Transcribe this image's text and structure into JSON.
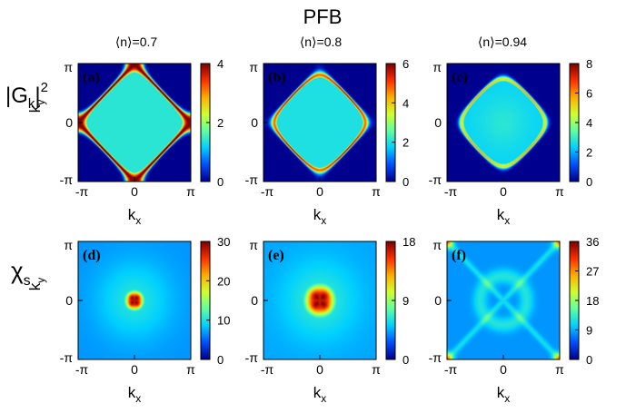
{
  "figure_title": "PFB",
  "column_titles": [
    "⟨n⟩=0.7",
    "⟨n⟩=0.8",
    "⟨n⟩=0.94"
  ],
  "row_labels": {
    "top": {
      "base": "|G",
      "sub": "k",
      "tail": "|",
      "sup": "2"
    },
    "bottom": {
      "base": "χ",
      "sub": "s"
    }
  },
  "axes": {
    "x_label_base": "k",
    "x_label_sub": "x",
    "y_label_base": "k",
    "y_label_sub": "y",
    "x_ticks": [
      "-π",
      "0",
      "π"
    ],
    "y_ticks": [
      "π",
      "0",
      "-π"
    ]
  },
  "colormap": [
    "#00008f",
    "#0050ff",
    "#00d0ff",
    "#60ffa0",
    "#d0ff30",
    "#ffb000",
    "#ff3000",
    "#800000"
  ],
  "chart_data": [
    {
      "type": "heatmap",
      "panel_label": "(a)",
      "quantity": "|G_k|^2",
      "x_range": [
        -3.1416,
        3.1416
      ],
      "y_range": [
        -3.1416,
        3.1416
      ],
      "colorbar_range": [
        0,
        4
      ],
      "colorbar_ticks": [
        "0",
        "2",
        "4"
      ],
      "colorbar_values": [
        0,
        2,
        4
      ],
      "pattern": "fermi-surface",
      "inner_fraction": 0.35,
      "ridge_level": 1.0,
      "background_level": 0.0,
      "ridge_offset": 0.0,
      "ridge_width": 0.08,
      "inner_bump": 0.0
    },
    {
      "type": "heatmap",
      "panel_label": "(b)",
      "quantity": "|G_k|^2",
      "x_range": [
        -3.1416,
        3.1416
      ],
      "y_range": [
        -3.1416,
        3.1416
      ],
      "colorbar_range": [
        0,
        6
      ],
      "colorbar_ticks": [
        "0",
        "2",
        "4",
        "6"
      ],
      "colorbar_values": [
        0,
        2,
        4,
        6
      ],
      "pattern": "fermi-surface",
      "inner_fraction": 0.33,
      "ridge_level": 0.8,
      "background_level": 0.0,
      "ridge_offset": -0.18,
      "ridge_width": 0.07,
      "inner_bump": 0.0
    },
    {
      "type": "heatmap",
      "panel_label": "(c)",
      "quantity": "|G_k|^2",
      "x_range": [
        -3.1416,
        3.1416
      ],
      "y_range": [
        -3.1416,
        3.1416
      ],
      "colorbar_range": [
        0,
        8
      ],
      "colorbar_ticks": [
        "0",
        "2",
        "4",
        "6",
        "8"
      ],
      "colorbar_values": [
        0,
        2,
        4,
        6,
        8
      ],
      "pattern": "fermi-surface",
      "inner_fraction": 0.3,
      "ridge_level": 0.62,
      "background_level": 0.0,
      "ridge_offset": -0.32,
      "ridge_width": 0.08,
      "inner_bump": 0.05
    },
    {
      "type": "heatmap",
      "panel_label": "(d)",
      "quantity": "chi_s",
      "x_range": [
        -3.1416,
        3.1416
      ],
      "y_range": [
        -3.1416,
        3.1416
      ],
      "colorbar_range": [
        0,
        30
      ],
      "colorbar_ticks": [
        "0",
        "10",
        "20",
        "30"
      ],
      "colorbar_values": [
        0,
        10,
        20,
        30
      ],
      "pattern": "central-peak",
      "peak_radius": 0.7,
      "background_level": 0.22,
      "peak_level": 0.85
    },
    {
      "type": "heatmap",
      "panel_label": "(e)",
      "quantity": "chi_s",
      "x_range": [
        -3.1416,
        3.1416
      ],
      "y_range": [
        -3.1416,
        3.1416
      ],
      "colorbar_range": [
        0,
        18
      ],
      "colorbar_ticks": [
        "0",
        "9",
        "18"
      ],
      "colorbar_values": [
        0,
        9,
        18
      ],
      "pattern": "central-peak",
      "peak_radius": 1.15,
      "background_level": 0.24,
      "peak_level": 0.85
    },
    {
      "type": "heatmap",
      "panel_label": "(f)",
      "quantity": "chi_s",
      "x_range": [
        -3.1416,
        3.1416
      ],
      "y_range": [
        -3.1416,
        3.1416
      ],
      "colorbar_range": [
        0,
        36
      ],
      "colorbar_ticks": [
        "0",
        "9",
        "18",
        "27",
        "36"
      ],
      "colorbar_values": [
        0,
        9,
        18,
        27,
        36
      ],
      "pattern": "cross",
      "background_level": 0.22,
      "peak_level": 0.42
    }
  ]
}
